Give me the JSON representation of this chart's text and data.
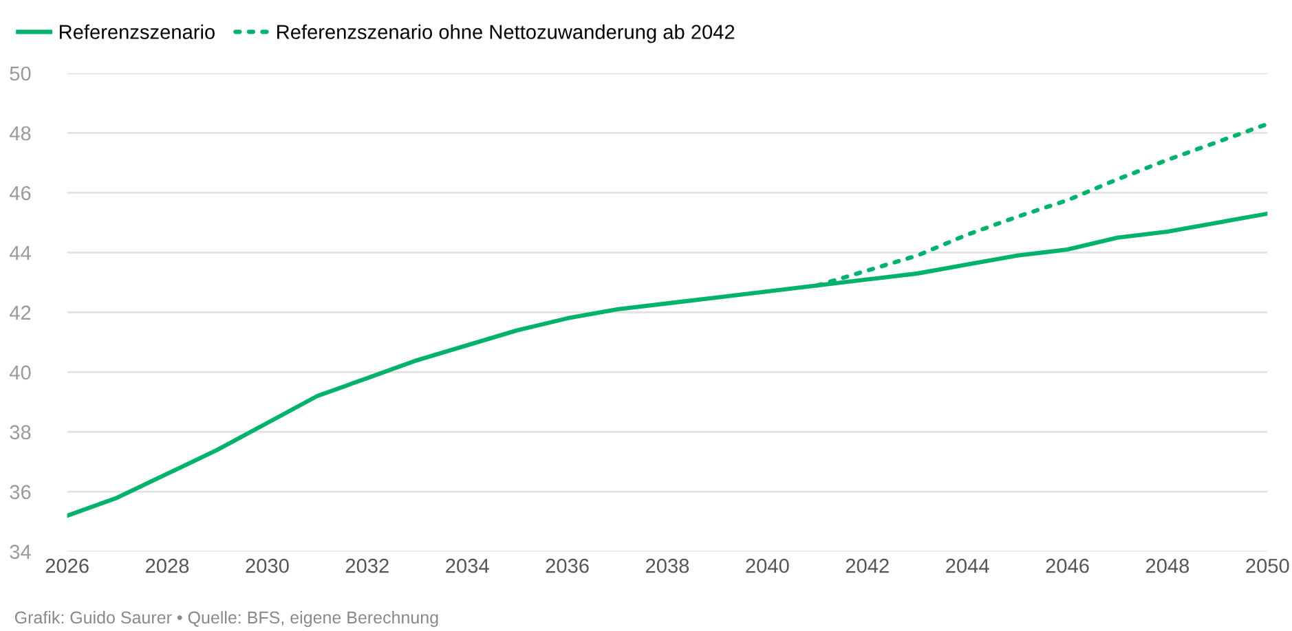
{
  "chart_data": {
    "type": "line",
    "x": [
      2026,
      2027,
      2028,
      2029,
      2030,
      2031,
      2032,
      2033,
      2034,
      2035,
      2036,
      2037,
      2038,
      2039,
      2040,
      2041,
      2042,
      2043,
      2044,
      2045,
      2046,
      2047,
      2048,
      2049,
      2050
    ],
    "series": [
      {
        "name": "Referenzszenario",
        "color": "#00b26b",
        "line_style": "solid",
        "values": [
          35.2,
          35.8,
          36.6,
          37.4,
          38.3,
          39.2,
          39.8,
          40.4,
          40.9,
          41.4,
          41.8,
          42.1,
          42.3,
          42.5,
          42.7,
          42.9,
          43.1,
          43.3,
          43.6,
          43.9,
          44.1,
          44.5,
          44.7,
          45.0,
          45.3
        ]
      },
      {
        "name": "Referenzszenario ohne Nettozuwanderung ab 2042",
        "color": "#00b26b",
        "line_style": "dotted",
        "x": [
          2041,
          2042,
          2043,
          2044,
          2045,
          2046,
          2047,
          2048,
          2049,
          2050
        ],
        "values": [
          42.9,
          43.4,
          43.9,
          44.6,
          45.2,
          45.75,
          46.45,
          47.1,
          47.7,
          48.3
        ]
      }
    ],
    "xlim": [
      2026,
      2050
    ],
    "xticks": [
      2026,
      2028,
      2030,
      2032,
      2034,
      2036,
      2038,
      2040,
      2042,
      2044,
      2046,
      2048,
      2050
    ],
    "ylim": [
      34,
      50
    ],
    "yticks": [
      34,
      36,
      38,
      40,
      42,
      44,
      46,
      48,
      50
    ],
    "grid": "y",
    "legend": "top left",
    "marker": "none",
    "annotations": [
      "Grafik: Guido Saurer • Quelle: BFS, eigene Berechnung"
    ]
  }
}
